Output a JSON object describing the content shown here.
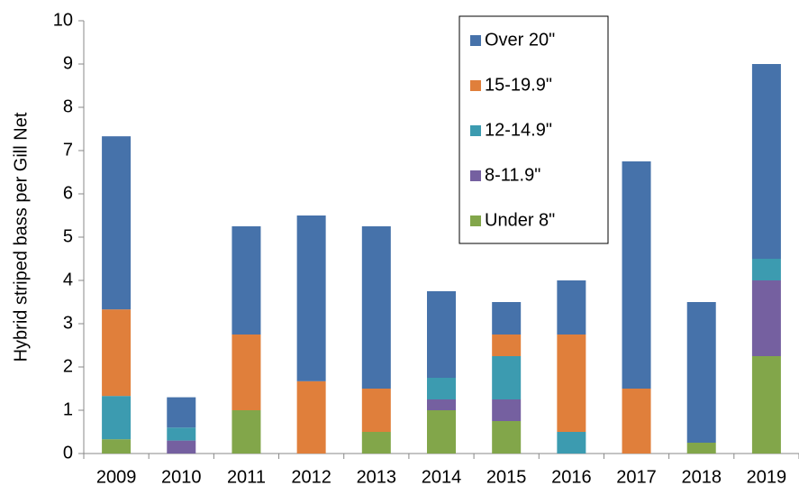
{
  "chart_data": {
    "type": "stacked_bar",
    "y_label": "Hybrid striped bass per Gill Net",
    "categories": [
      "2009",
      "2010",
      "2011",
      "2012",
      "2013",
      "2014",
      "2015",
      "2016",
      "2017",
      "2018",
      "2019"
    ],
    "series": [
      {
        "name": "Under 8\"",
        "color": "#82a64a",
        "values": [
          0.33,
          0,
          1.0,
          0,
          0.5,
          1.0,
          0.75,
          0,
          0,
          0.25,
          2.25
        ]
      },
      {
        "name": "8-11.9\"",
        "color": "#7560a0",
        "values": [
          0,
          0.3,
          0,
          0,
          0,
          0.25,
          0.5,
          0,
          0,
          0,
          1.75
        ]
      },
      {
        "name": "12-14.9\"",
        "color": "#3c9bb0",
        "values": [
          1.0,
          0.3,
          0,
          0,
          0,
          0.5,
          1.0,
          0.5,
          0,
          0,
          0.5
        ]
      },
      {
        "name": "15-19.9\"",
        "color": "#e07f3b",
        "values": [
          2.0,
          0,
          1.75,
          1.67,
          1.0,
          0,
          0.5,
          2.25,
          1.5,
          0,
          0
        ]
      },
      {
        "name": "Over 20\"",
        "color": "#4672aa",
        "values": [
          4.0,
          0.7,
          2.5,
          3.83,
          3.75,
          2.0,
          0.75,
          1.25,
          5.25,
          3.25,
          4.5
        ]
      }
    ],
    "ylim": [
      0,
      10
    ],
    "yticks": [
      0,
      1,
      2,
      3,
      4,
      5,
      6,
      7,
      8,
      9,
      10
    ],
    "legend": "top-right"
  }
}
